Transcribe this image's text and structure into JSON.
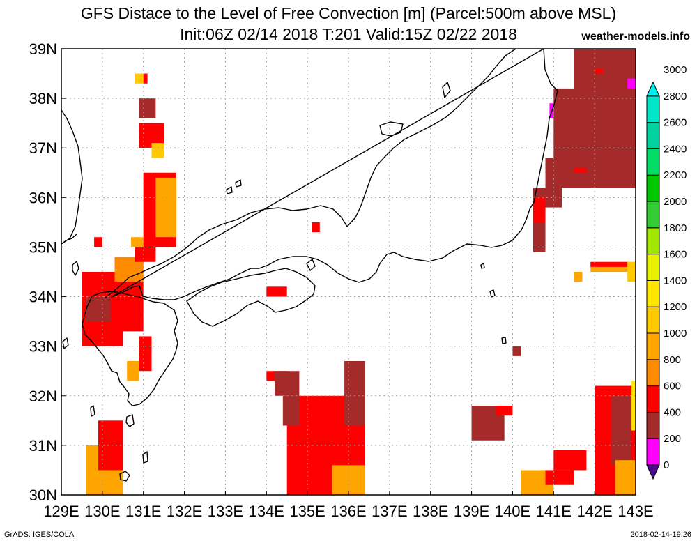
{
  "header": {
    "title": "GFS Distace to the Level of Free Convection [m] (Parcel:500m above MSL)",
    "subtitle": "Init:06Z 02/14 2018 T:201 Valid:15Z 02/22 2018",
    "brand": "weather-models.info"
  },
  "footer": {
    "credit": "GrADS: IGES/COLA",
    "timestamp": "2018-02-14-19:26"
  },
  "colors": {
    "background": "#ffffff",
    "grid": "#a0a0a0",
    "coast": "#000000"
  },
  "chart_data": {
    "type": "heatmap",
    "title": "GFS Distace to the Level of Free Convection [m] (Parcel:500m above MSL)",
    "xlabel": "",
    "ylabel": "",
    "xlim": [
      129,
      143
    ],
    "ylim": [
      30,
      39
    ],
    "x_ticks": [
      "129E",
      "130E",
      "131E",
      "132E",
      "133E",
      "134E",
      "135E",
      "136E",
      "137E",
      "138E",
      "139E",
      "140E",
      "141E",
      "142E",
      "143E"
    ],
    "y_ticks": [
      "30N",
      "31N",
      "32N",
      "33N",
      "34N",
      "35N",
      "36N",
      "37N",
      "38N",
      "39N"
    ],
    "grid": true,
    "colorbar": {
      "levels": [
        0,
        200,
        400,
        600,
        800,
        1000,
        1200,
        1400,
        1600,
        1800,
        2000,
        2200,
        2400,
        2600,
        2800,
        3000
      ],
      "labels": [
        "0",
        "200",
        "400",
        "600",
        "800",
        "1000",
        "1200",
        "1400",
        "1600",
        "1800",
        "2000",
        "2200",
        "2400",
        "2600",
        "2800",
        "3000"
      ],
      "colors": [
        "#4b0a8c",
        "#ff00ff",
        "#a52a2a",
        "#ff0000",
        "#ff8c00",
        "#ffa500",
        "#ffc800",
        "#ffe600",
        "#e6f000",
        "#a0e600",
        "#32cd32",
        "#00c800",
        "#00dc64",
        "#00d2a0",
        "#00e6c8",
        "#00f0f0"
      ]
    },
    "regions": [
      {
        "lon": [
          130.0,
          131.0
        ],
        "lat": [
          33.3,
          34.3
        ],
        "level": 600
      },
      {
        "lon": [
          129.5,
          130.5
        ],
        "lat": [
          33.0,
          34.5
        ],
        "level": 600
      },
      {
        "lon": [
          129.6,
          130.2
        ],
        "lat": [
          33.5,
          34.0
        ],
        "level": 400
      },
      {
        "lon": [
          130.3,
          131.0
        ],
        "lat": [
          34.3,
          34.8
        ],
        "level": 800
      },
      {
        "lon": [
          130.8,
          131.3
        ],
        "lat": [
          34.7,
          35.0
        ],
        "level": 600
      },
      {
        "lon": [
          130.7,
          131.3
        ],
        "lat": [
          35.0,
          35.2
        ],
        "level": 1000
      },
      {
        "lon": [
          131.0,
          131.8
        ],
        "lat": [
          35.0,
          36.5
        ],
        "level": 600
      },
      {
        "lon": [
          131.3,
          131.8
        ],
        "lat": [
          35.2,
          36.4
        ],
        "level": 1000
      },
      {
        "lon": [
          130.9,
          131.5
        ],
        "lat": [
          37.0,
          37.5
        ],
        "level": 600
      },
      {
        "lon": [
          131.2,
          131.5
        ],
        "lat": [
          36.8,
          37.1
        ],
        "level": 1200
      },
      {
        "lon": [
          130.9,
          131.3
        ],
        "lat": [
          37.6,
          38.0
        ],
        "level": 400
      },
      {
        "lon": [
          130.8,
          131.0
        ],
        "lat": [
          38.3,
          38.5
        ],
        "level": 1200
      },
      {
        "lon": [
          131.0,
          131.1
        ],
        "lat": [
          38.3,
          38.5
        ],
        "level": 600
      },
      {
        "lon": [
          129.8,
          130.0
        ],
        "lat": [
          35.0,
          35.2
        ],
        "level": 600
      },
      {
        "lon": [
          130.9,
          131.2
        ],
        "lat": [
          32.5,
          33.2
        ],
        "level": 600
      },
      {
        "lon": [
          130.6,
          130.9
        ],
        "lat": [
          32.3,
          32.7
        ],
        "level": 1000
      },
      {
        "lon": [
          129.6,
          130.5
        ],
        "lat": [
          30.0,
          31.0
        ],
        "level": 1000
      },
      {
        "lon": [
          129.9,
          130.5
        ],
        "lat": [
          30.5,
          31.5
        ],
        "level": 600
      },
      {
        "lon": [
          134.0,
          134.5
        ],
        "lat": [
          32.3,
          32.5
        ],
        "level": 600
      },
      {
        "lon": [
          134.2,
          134.8
        ],
        "lat": [
          32.0,
          32.5
        ],
        "level": 400
      },
      {
        "lon": [
          134.5,
          136.4
        ],
        "lat": [
          30.0,
          32.0
        ],
        "level": 600
      },
      {
        "lon": [
          135.9,
          136.4
        ],
        "lat": [
          31.4,
          32.7
        ],
        "level": 400
      },
      {
        "lon": [
          134.4,
          134.8
        ],
        "lat": [
          31.4,
          32.0
        ],
        "level": 400
      },
      {
        "lon": [
          135.6,
          136.4
        ],
        "lat": [
          30.0,
          30.6
        ],
        "level": 1000
      },
      {
        "lon": [
          134.0,
          134.5
        ],
        "lat": [
          34.0,
          34.2
        ],
        "level": 600
      },
      {
        "lon": [
          135.1,
          135.3
        ],
        "lat": [
          35.3,
          35.5
        ],
        "level": 600
      },
      {
        "lon": [
          139.0,
          139.8
        ],
        "lat": [
          31.1,
          31.8
        ],
        "level": 400
      },
      {
        "lon": [
          139.6,
          140.0
        ],
        "lat": [
          31.6,
          31.8
        ],
        "level": 600
      },
      {
        "lon": [
          140.0,
          140.2
        ],
        "lat": [
          32.8,
          33.0
        ],
        "level": 400
      },
      {
        "lon": [
          140.2,
          141.0
        ],
        "lat": [
          30.0,
          30.5
        ],
        "level": 1000
      },
      {
        "lon": [
          140.8,
          141.5
        ],
        "lat": [
          30.2,
          30.5
        ],
        "level": 600
      },
      {
        "lon": [
          141.0,
          141.8
        ],
        "lat": [
          30.5,
          30.9
        ],
        "level": 600
      },
      {
        "lon": [
          142.0,
          143.0
        ],
        "lat": [
          30.0,
          32.2
        ],
        "level": 600
      },
      {
        "lon": [
          142.4,
          142.9
        ],
        "lat": [
          30.6,
          32.0
        ],
        "level": 400
      },
      {
        "lon": [
          142.9,
          143.0
        ],
        "lat": [
          31.3,
          32.3
        ],
        "level": 1400
      },
      {
        "lon": [
          142.5,
          143.0
        ],
        "lat": [
          30.0,
          30.7
        ],
        "level": 1000
      },
      {
        "lon": [
          140.5,
          140.8
        ],
        "lat": [
          34.9,
          36.2
        ],
        "level": 400
      },
      {
        "lon": [
          140.5,
          140.8
        ],
        "lat": [
          35.5,
          36.0
        ],
        "level": 600
      },
      {
        "lon": [
          140.8,
          141.2
        ],
        "lat": [
          35.8,
          36.8
        ],
        "level": 400
      },
      {
        "lon": [
          141.0,
          143.0
        ],
        "lat": [
          36.2,
          38.2
        ],
        "level": 400
      },
      {
        "lon": [
          141.5,
          143.0
        ],
        "lat": [
          37.0,
          39.0
        ],
        "level": 400
      },
      {
        "lon": [
          141.5,
          141.8
        ],
        "lat": [
          36.5,
          36.6
        ],
        "level": 600
      },
      {
        "lon": [
          142.0,
          142.2
        ],
        "lat": [
          38.5,
          38.6
        ],
        "level": 600
      },
      {
        "lon": [
          141.9,
          143.0
        ],
        "lat": [
          34.5,
          34.7
        ],
        "level": 1000
      },
      {
        "lon": [
          141.9,
          142.8
        ],
        "lat": [
          34.6,
          34.7
        ],
        "level": 600
      },
      {
        "lon": [
          142.8,
          143.0
        ],
        "lat": [
          34.3,
          34.7
        ],
        "level": 1200
      },
      {
        "lon": [
          141.5,
          141.7
        ],
        "lat": [
          34.3,
          34.5
        ],
        "level": 1000
      },
      {
        "lon": [
          142.8,
          143.0
        ],
        "lat": [
          38.2,
          38.4
        ],
        "level": 200
      },
      {
        "lon": [
          140.9,
          141.0
        ],
        "lat": [
          37.6,
          37.9
        ],
        "level": 200
      }
    ]
  }
}
